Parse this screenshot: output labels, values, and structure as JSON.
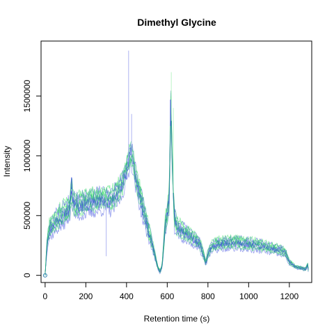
{
  "chart_data": {
    "type": "line",
    "title": "Dimethyl Glycine",
    "xlabel": "Retention time (s)",
    "ylabel": "Intensity",
    "xlim": [
      -20,
      1310
    ],
    "ylim": [
      -60000,
      1960000
    ],
    "x_ticks": [
      0,
      200,
      400,
      600,
      800,
      1000,
      1200
    ],
    "x_tick_labels": [
      "0",
      "200",
      "400",
      "600",
      "800",
      "1000",
      "1200"
    ],
    "y_ticks": [
      0,
      500000,
      1000000,
      1500000
    ],
    "y_tick_labels": [
      "0",
      "500000",
      "1000000",
      "1500000"
    ],
    "grid": false,
    "legend": "none",
    "colors": {
      "blue": "#3344dd",
      "blue_light": "#aab0f0",
      "green": "#22dd55",
      "green_light": "#b8f5c6",
      "origin_marker": "#2a7fb0"
    },
    "origin_point": {
      "x": 0,
      "y": 0
    },
    "profile": {
      "x": [
        0,
        10,
        20,
        40,
        60,
        80,
        100,
        120,
        130,
        140,
        160,
        180,
        200,
        220,
        250,
        280,
        300,
        320,
        340,
        360,
        380,
        400,
        410,
        420,
        430,
        440,
        460,
        480,
        500,
        520,
        540,
        555,
        565,
        575,
        590,
        600,
        610,
        618,
        625,
        635,
        650,
        680,
        720,
        760,
        780,
        790,
        800,
        820,
        850,
        900,
        950,
        1000,
        1050,
        1100,
        1150,
        1180,
        1200,
        1230,
        1260,
        1280,
        1290,
        1295
      ],
      "y": [
        0,
        280000,
        380000,
        420000,
        470000,
        500000,
        530000,
        560000,
        720000,
        600000,
        580000,
        590000,
        600000,
        610000,
        620000,
        630000,
        640000,
        620000,
        650000,
        700000,
        760000,
        880000,
        950000,
        1020000,
        980000,
        860000,
        700000,
        560000,
        420000,
        300000,
        160000,
        60000,
        30000,
        80000,
        420000,
        500000,
        650000,
        1450000,
        900000,
        480000,
        400000,
        360000,
        320000,
        260000,
        160000,
        100000,
        180000,
        240000,
        260000,
        270000,
        270000,
        260000,
        250000,
        230000,
        210000,
        190000,
        110000,
        70000,
        60000,
        50000,
        90000,
        20000
      ]
    },
    "series": [
      {
        "shade": "blue",
        "offset": -40000,
        "noise": 45000,
        "seed": 11
      },
      {
        "shade": "green",
        "offset": 30000,
        "noise": 45000,
        "seed": 23
      },
      {
        "shade": "blue",
        "offset": -90000,
        "noise": 50000,
        "seed": 37
      },
      {
        "shade": "green",
        "offset": 60000,
        "noise": 40000,
        "seed": 41
      },
      {
        "shade": "blue",
        "offset": 20000,
        "noise": 55000,
        "seed": 53
      },
      {
        "shade": "green",
        "offset": -20000,
        "noise": 50000,
        "seed": 67
      },
      {
        "shade": "blue",
        "offset": 80000,
        "noise": 45000,
        "seed": 79
      },
      {
        "shade": "green",
        "offset": -60000,
        "noise": 40000,
        "seed": 83
      },
      {
        "shade": "blue",
        "offset": 0,
        "noise": 60000,
        "seed": 97
      },
      {
        "shade": "green",
        "offset": 10000,
        "noise": 55000,
        "seed": 101
      },
      {
        "shade": "blue",
        "offset": -10000,
        "noise": 45000,
        "seed": 113
      },
      {
        "shade": "green",
        "offset": 90000,
        "noise": 45000,
        "seed": 127
      }
    ],
    "spikes": [
      {
        "x": 130,
        "y": 820000,
        "shade": "blue"
      },
      {
        "x": 410,
        "y": 1880000,
        "shade": "blue_light"
      },
      {
        "x": 425,
        "y": 1350000,
        "shade": "blue_light"
      },
      {
        "x": 620,
        "y": 1700000,
        "shade": "green_light"
      },
      {
        "x": 616,
        "y": 1470000,
        "shade": "blue"
      },
      {
        "x": 630,
        "y": 1400000,
        "shade": "green_light"
      },
      {
        "x": 300,
        "y": 160000,
        "shade": "blue_light"
      },
      {
        "x": 860,
        "y": 310000,
        "shade": "green_light"
      }
    ]
  }
}
